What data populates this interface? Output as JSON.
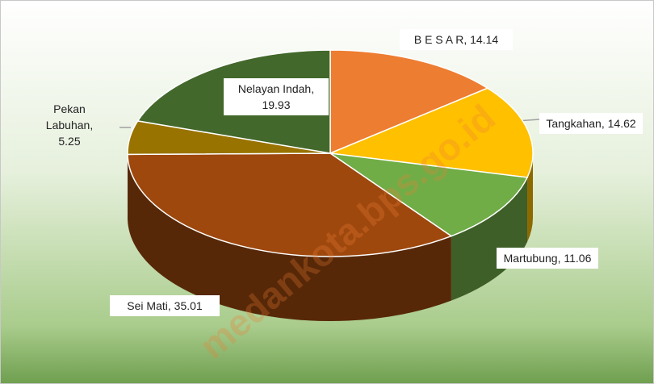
{
  "chart_data": {
    "type": "pie3d",
    "categories": [
      "B E S A R",
      "Tangkahan",
      "Martubung",
      "Sei Mati",
      "Pekan Labuhan",
      "Nelayan Indah"
    ],
    "values": [
      14.14,
      14.62,
      11.06,
      35.01,
      5.25,
      19.93
    ],
    "colors": [
      "#ED7D31",
      "#FFC000",
      "#70AD47",
      "#9E480E",
      "#997300",
      "#43682B"
    ],
    "watermark": "medankota.bps.go.id"
  }
}
